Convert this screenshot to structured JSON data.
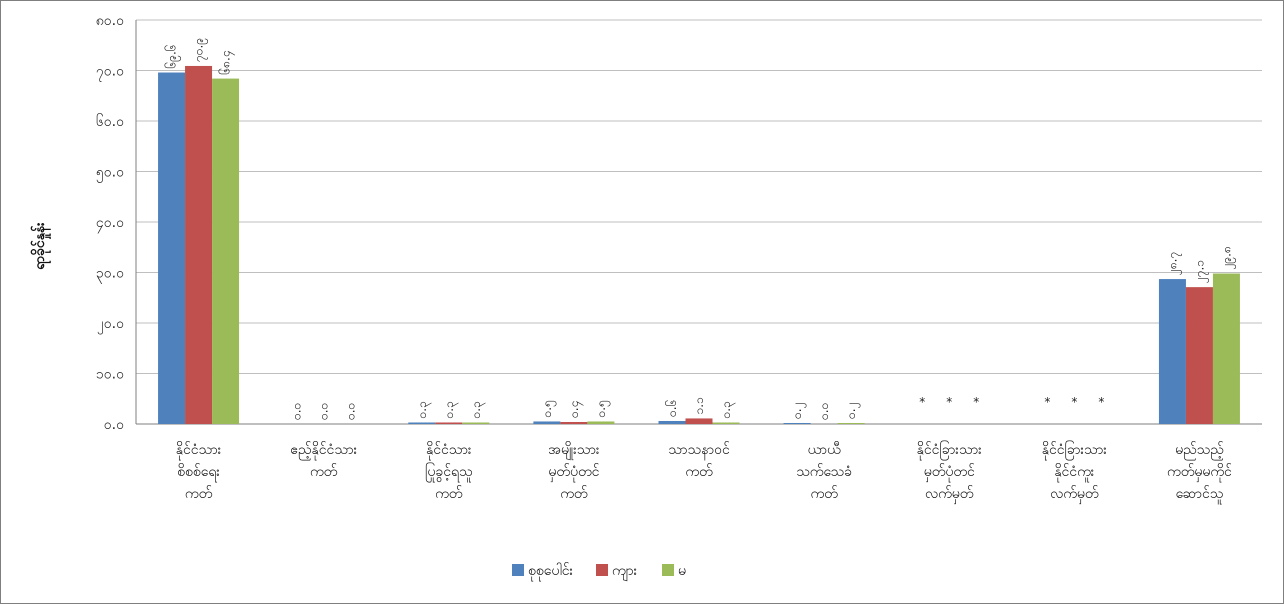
{
  "chart_data": {
    "type": "bar",
    "ylabel": "ရာခိုင်နှုန်း",
    "ylim": [
      0,
      80
    ],
    "y_ticks": [
      "၀.၀",
      "၁၀.၀",
      "၂၀.၀",
      "၃၀.၀",
      "၄၀.၀",
      "၅၀.၀",
      "၆၀.၀",
      "၇၀.၀",
      "၈၀.၀"
    ],
    "grid": true,
    "legend_position": "bottom",
    "categories": [
      [
        "နိုင်ငံသား",
        "စိစစ်ရေး",
        "ကတ်"
      ],
      [
        "ဧည့်နိုင်ငံသား",
        "ကတ်"
      ],
      [
        "နိုင်ငံသား",
        "ပြုခွင့်ရသူ",
        "ကတ်"
      ],
      [
        "အမျိုးသား",
        "မှတ်ပုံတင်",
        "ကတ်"
      ],
      [
        "သာသနာဝင်",
        "ကတ်"
      ],
      [
        "ယာယီ",
        "သက်သေခံ",
        "ကတ်"
      ],
      [
        "နိုင်ငံခြားသား",
        "မှတ်ပုံတင်",
        "လက်မှတ်"
      ],
      [
        "နိုင်ငံခြားသား",
        "နိုင်ငံကူး",
        "လက်မှတ်"
      ],
      [
        "မည်သည့်",
        "ကတ်မှမကိုင်",
        "ဆောင်သူ"
      ]
    ],
    "series": [
      {
        "name": "စုစုပေါင်း",
        "color": "#4f81bd",
        "values": [
          69.6,
          0.0,
          0.3,
          0.5,
          0.6,
          0.2,
          0.0,
          0.0,
          28.7
        ],
        "labels": [
          "၆၉.၆",
          "၀.၀",
          "၀.၃",
          "၀.၅",
          "၀.၆",
          "၀.၂",
          "*",
          "*",
          "၂၈.၇"
        ]
      },
      {
        "name": "ကျား",
        "color": "#c0504d",
        "values": [
          70.9,
          0.0,
          0.3,
          0.4,
          1.1,
          0.0,
          0.0,
          0.0,
          27.1
        ],
        "labels": [
          "၇၀.၉",
          "၀.၀",
          "၀.၃",
          "၀.၄",
          "၁.၁",
          "၀.၀",
          "*",
          "*",
          "၂၇.၁"
        ]
      },
      {
        "name": "မ",
        "color": "#9bbb59",
        "values": [
          68.4,
          0.0,
          0.3,
          0.5,
          0.3,
          0.2,
          0.0,
          0.0,
          29.8
        ],
        "labels": [
          "၆၈.၄",
          "၀.၀",
          "၀.၃",
          "၀.၅",
          "၀.၃",
          "၀.၂",
          "*",
          "*",
          "၂၉.၈"
        ]
      }
    ]
  }
}
